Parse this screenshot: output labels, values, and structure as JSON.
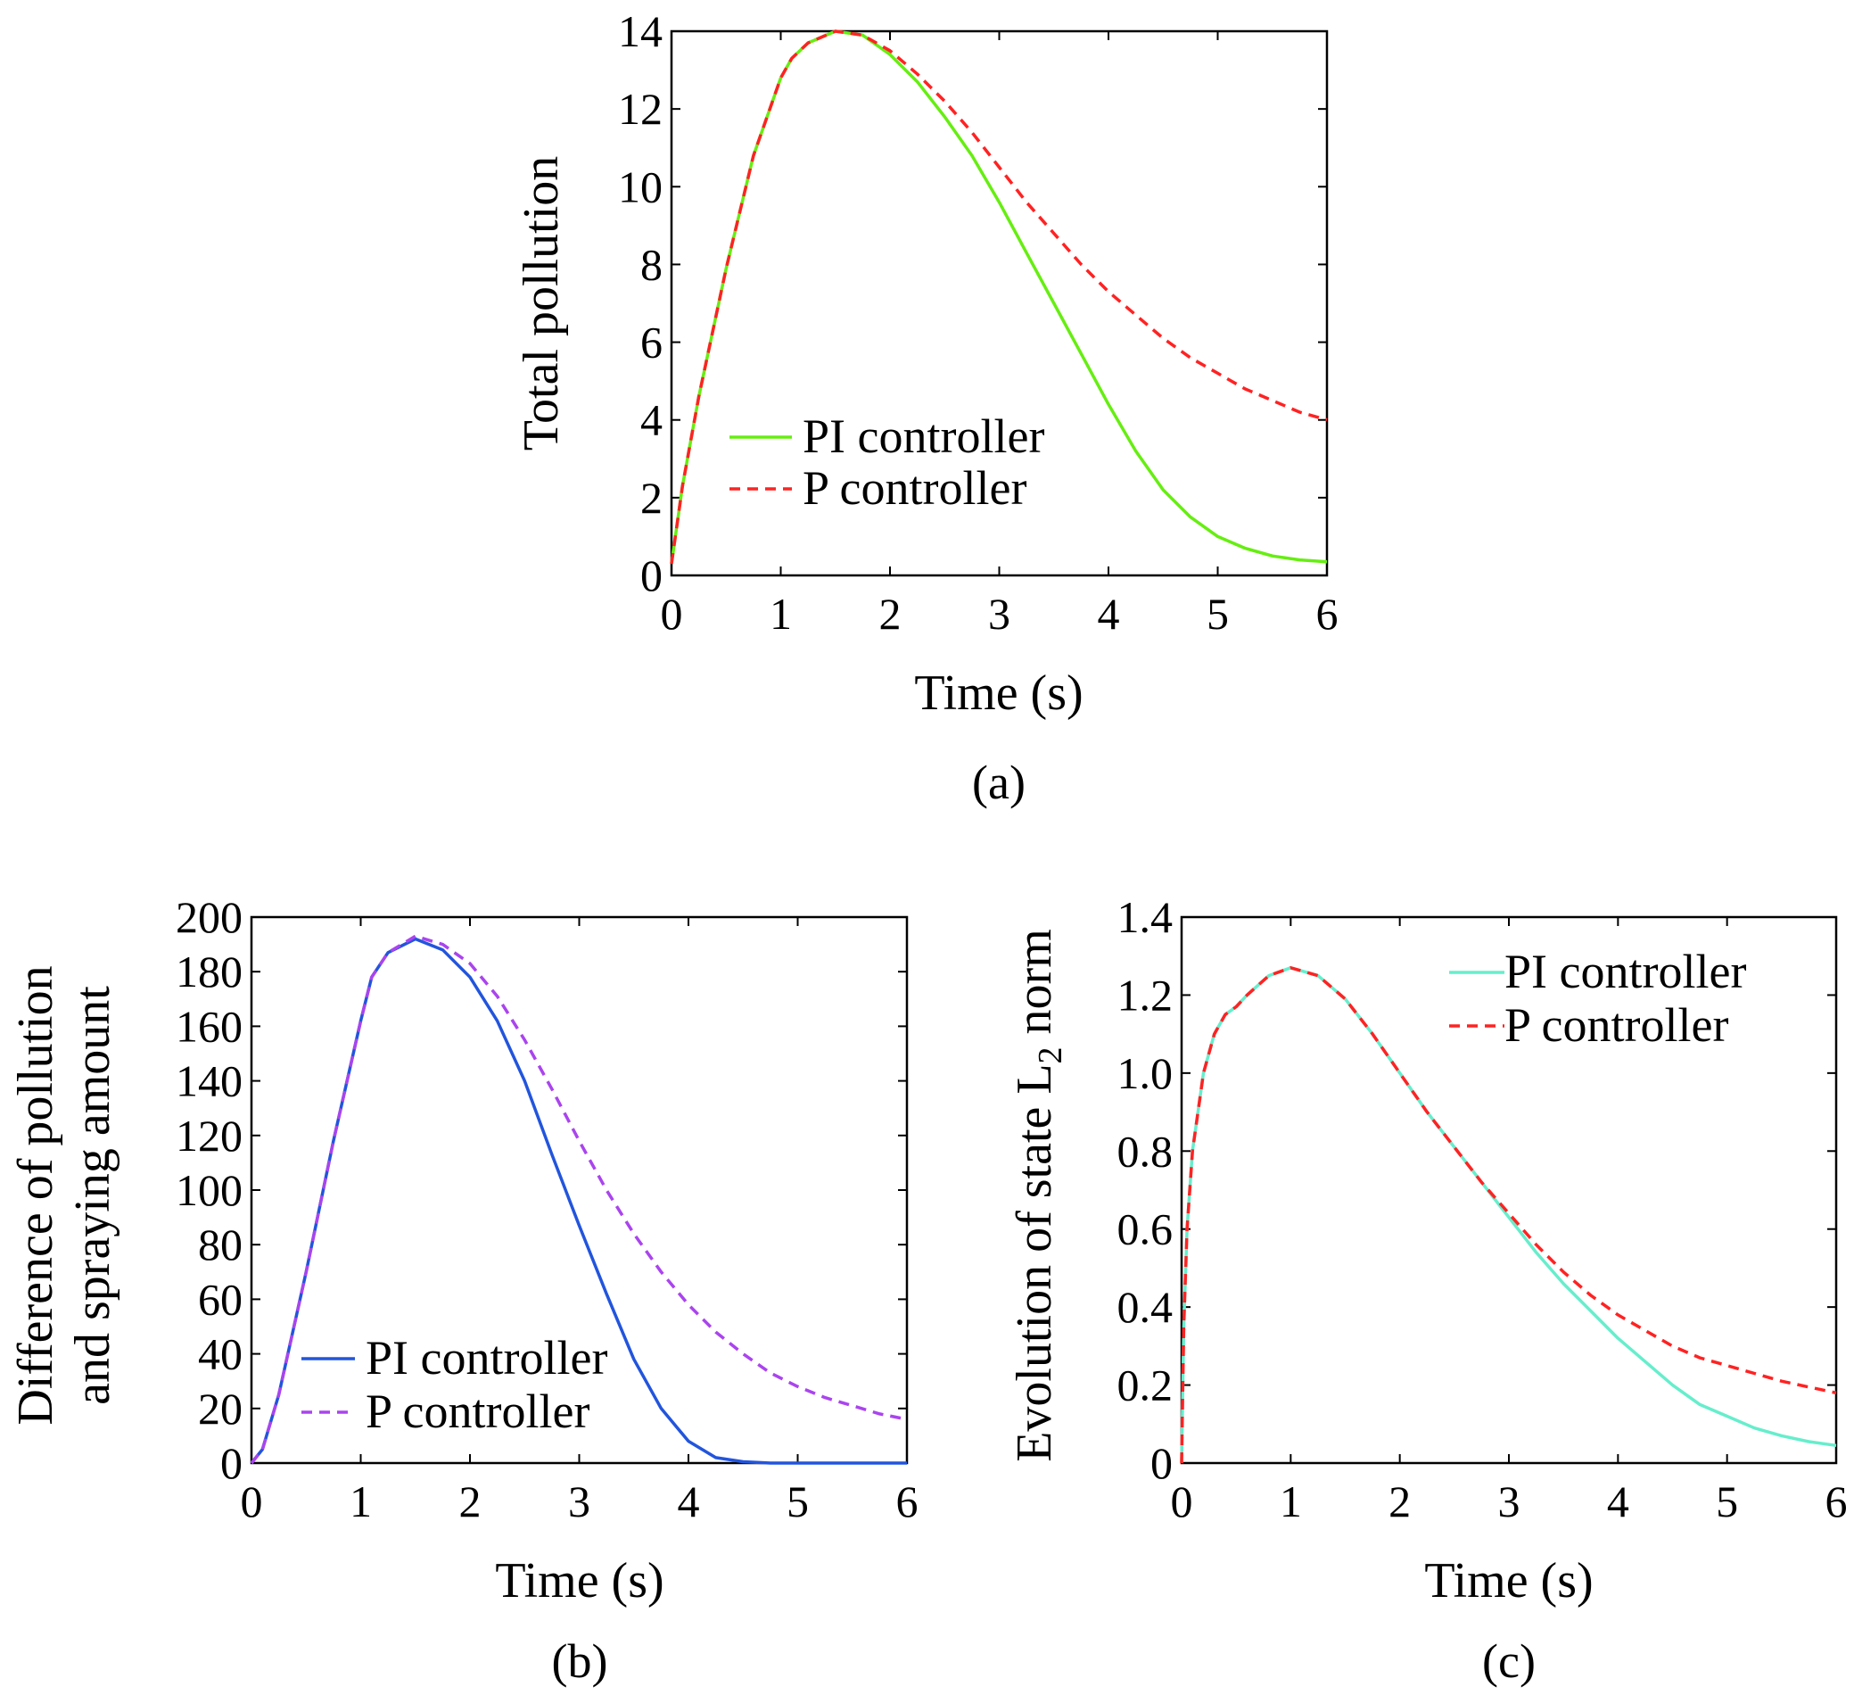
{
  "chart_data": [
    {
      "panel": "a",
      "type": "line",
      "caption": "(a)",
      "xlabel": "Time (s)",
      "ylabel": "Total pollution",
      "xlim": [
        0,
        6
      ],
      "ylim": [
        0,
        14
      ],
      "xticks": [
        0,
        1,
        2,
        3,
        4,
        5,
        6
      ],
      "yticks": [
        0,
        2,
        4,
        6,
        8,
        10,
        12,
        14
      ],
      "legend_position": "lower-left",
      "series": [
        {
          "name": "PI controller",
          "color": "#66ee11",
          "style": "solid",
          "x": [
            0,
            0.1,
            0.25,
            0.5,
            0.75,
            1.0,
            1.1,
            1.25,
            1.5,
            1.75,
            2.0,
            2.25,
            2.5,
            2.75,
            3.0,
            3.25,
            3.5,
            3.75,
            4.0,
            4.25,
            4.5,
            4.75,
            5.0,
            5.25,
            5.5,
            5.75,
            6.0
          ],
          "y": [
            0.3,
            2.3,
            4.6,
            7.9,
            10.8,
            12.8,
            13.3,
            13.7,
            14.0,
            13.9,
            13.4,
            12.7,
            11.8,
            10.8,
            9.6,
            8.3,
            7.0,
            5.7,
            4.4,
            3.2,
            2.2,
            1.5,
            1.0,
            0.7,
            0.5,
            0.4,
            0.35
          ]
        },
        {
          "name": "P controller",
          "color": "#ff2222",
          "style": "dashed",
          "x": [
            0,
            0.1,
            0.25,
            0.5,
            0.75,
            1.0,
            1.1,
            1.25,
            1.5,
            1.75,
            2.0,
            2.25,
            2.5,
            2.75,
            3.0,
            3.25,
            3.5,
            3.75,
            4.0,
            4.25,
            4.5,
            4.75,
            5.0,
            5.25,
            5.5,
            5.75,
            6.0
          ],
          "y": [
            0.3,
            2.3,
            4.6,
            7.9,
            10.8,
            12.8,
            13.3,
            13.7,
            14.0,
            13.9,
            13.5,
            12.9,
            12.2,
            11.4,
            10.5,
            9.6,
            8.8,
            8.0,
            7.3,
            6.7,
            6.1,
            5.6,
            5.2,
            4.8,
            4.5,
            4.2,
            4.0
          ]
        }
      ]
    },
    {
      "panel": "b",
      "type": "line",
      "caption": "(b)",
      "xlabel": "Time (s)",
      "ylabel": [
        "Difference of pollution",
        "and spraying amount"
      ],
      "xlim": [
        0,
        6
      ],
      "ylim": [
        0,
        200
      ],
      "xticks": [
        0,
        1,
        2,
        3,
        4,
        5,
        6
      ],
      "yticks": [
        0,
        20,
        40,
        60,
        80,
        100,
        120,
        140,
        160,
        180,
        200
      ],
      "legend_position": "lower-left",
      "series": [
        {
          "name": "PI controller",
          "color": "#2255dd",
          "style": "solid",
          "x": [
            0,
            0.1,
            0.25,
            0.5,
            0.75,
            1.0,
            1.1,
            1.25,
            1.5,
            1.75,
            2.0,
            2.25,
            2.5,
            2.75,
            3.0,
            3.25,
            3.5,
            3.75,
            4.0,
            4.25,
            4.5,
            4.75,
            5.0,
            5.5,
            6.0
          ],
          "y": [
            0,
            5,
            25,
            70,
            118,
            162,
            178,
            187,
            192,
            188,
            178,
            162,
            140,
            113,
            87,
            62,
            38,
            20,
            8,
            2,
            0.5,
            0,
            0,
            0,
            0
          ]
        },
        {
          "name": "P controller",
          "color": "#aa44ee",
          "style": "dashed",
          "x": [
            0,
            0.1,
            0.25,
            0.5,
            0.75,
            1.0,
            1.1,
            1.25,
            1.5,
            1.75,
            2.0,
            2.25,
            2.5,
            2.75,
            3.0,
            3.25,
            3.5,
            3.75,
            4.0,
            4.25,
            4.5,
            4.75,
            5.0,
            5.25,
            5.5,
            5.75,
            6.0
          ],
          "y": [
            0,
            5,
            25,
            70,
            118,
            162,
            178,
            187,
            193,
            190,
            183,
            171,
            155,
            137,
            118,
            100,
            84,
            70,
            58,
            48,
            40,
            33,
            28,
            24,
            21,
            18,
            16
          ]
        }
      ]
    },
    {
      "panel": "c",
      "type": "line",
      "caption": "(c)",
      "xlabel": "Time (s)",
      "ylabel": "Evolution of state L",
      "ylabel_subscript": "2",
      "ylabel_suffix": " norm",
      "xlim": [
        0,
        6
      ],
      "ylim": [
        0,
        1.4
      ],
      "xticks": [
        0,
        1,
        2,
        3,
        4,
        5,
        6
      ],
      "yticks": [
        0,
        0.2,
        0.4,
        0.6,
        0.8,
        1.0,
        1.2,
        1.4
      ],
      "ytick_labels": [
        "0",
        "0.2",
        "0.4",
        "0.6",
        "0.8",
        "1.0",
        "1.2",
        "1.4"
      ],
      "legend_position": "top-right",
      "series": [
        {
          "name": "PI controller",
          "color": "#66eecc",
          "style": "solid",
          "x": [
            0,
            0.02,
            0.05,
            0.1,
            0.2,
            0.3,
            0.4,
            0.5,
            0.6,
            0.8,
            1.0,
            1.25,
            1.5,
            1.75,
            2.0,
            2.25,
            2.5,
            2.75,
            3.0,
            3.25,
            3.5,
            3.75,
            4.0,
            4.25,
            4.5,
            4.75,
            5.0,
            5.25,
            5.5,
            5.75,
            6.0
          ],
          "y": [
            0,
            0.35,
            0.6,
            0.8,
            1.0,
            1.1,
            1.15,
            1.17,
            1.2,
            1.25,
            1.27,
            1.25,
            1.19,
            1.1,
            1.0,
            0.9,
            0.81,
            0.72,
            0.63,
            0.54,
            0.46,
            0.39,
            0.32,
            0.26,
            0.2,
            0.15,
            0.12,
            0.09,
            0.07,
            0.055,
            0.045
          ]
        },
        {
          "name": "P controller",
          "color": "#ff2222",
          "style": "dashed",
          "x": [
            0,
            0.02,
            0.05,
            0.1,
            0.2,
            0.3,
            0.4,
            0.5,
            0.6,
            0.8,
            1.0,
            1.25,
            1.5,
            1.75,
            2.0,
            2.25,
            2.5,
            2.75,
            3.0,
            3.25,
            3.5,
            3.75,
            4.0,
            4.25,
            4.5,
            4.75,
            5.0,
            5.25,
            5.5,
            5.75,
            6.0
          ],
          "y": [
            0,
            0.35,
            0.6,
            0.8,
            1.0,
            1.1,
            1.15,
            1.17,
            1.2,
            1.25,
            1.27,
            1.25,
            1.19,
            1.1,
            1.0,
            0.9,
            0.81,
            0.72,
            0.64,
            0.56,
            0.49,
            0.43,
            0.38,
            0.34,
            0.3,
            0.27,
            0.25,
            0.23,
            0.21,
            0.195,
            0.18
          ]
        }
      ]
    }
  ]
}
